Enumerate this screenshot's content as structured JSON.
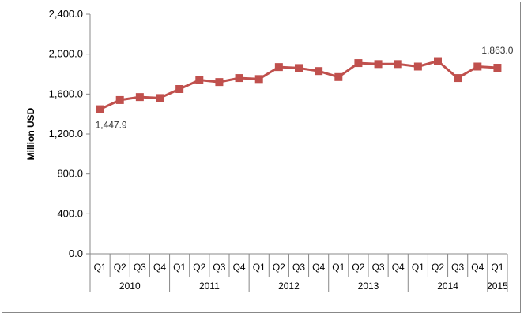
{
  "chart_data": {
    "type": "line",
    "ylabel": "Million USD",
    "ylim": [
      0,
      2400
    ],
    "y_ticks": [
      "0.0",
      "400.0",
      "800.0",
      "1,200.0",
      "1,600.0",
      "2,000.0",
      "2,400.0"
    ],
    "y_tick_values": [
      0,
      400,
      800,
      1200,
      1600,
      2000,
      2400
    ],
    "grid": false,
    "legend": "none",
    "categories": [
      "Q1",
      "Q2",
      "Q3",
      "Q4",
      "Q1",
      "Q2",
      "Q3",
      "Q4",
      "Q1",
      "Q2",
      "Q3",
      "Q4",
      "Q1",
      "Q2",
      "Q3",
      "Q4",
      "Q1",
      "Q2",
      "Q3",
      "Q4",
      "Q1"
    ],
    "years": [
      {
        "label": "2010",
        "span": 4
      },
      {
        "label": "2011",
        "span": 4
      },
      {
        "label": "2012",
        "span": 4
      },
      {
        "label": "2013",
        "span": 4
      },
      {
        "label": "2014",
        "span": 4
      },
      {
        "label": "2015",
        "span": 1
      }
    ],
    "series": [
      {
        "values": [
          1447.9,
          1540,
          1570,
          1560,
          1650,
          1740,
          1720,
          1760,
          1750,
          1870,
          1860,
          1830,
          1770,
          1910,
          1900,
          1900,
          1875,
          1930,
          1760,
          1875,
          1863.0
        ],
        "color": "#c0504d"
      }
    ],
    "data_labels": [
      {
        "index": 0,
        "text": "1,447.9"
      },
      {
        "index": 20,
        "text": "1,863.0"
      }
    ]
  }
}
